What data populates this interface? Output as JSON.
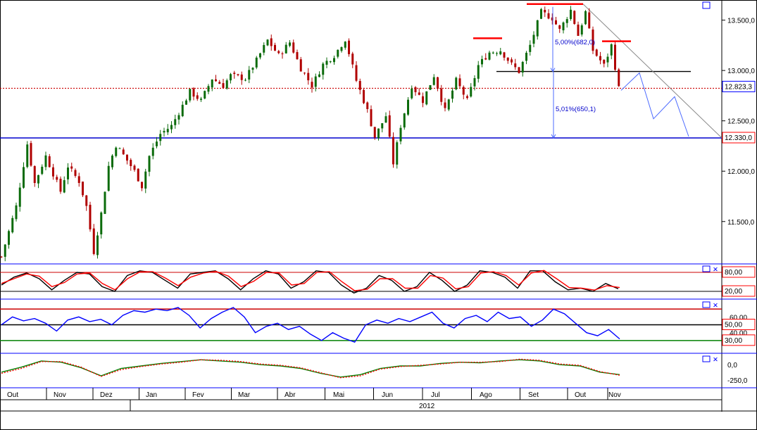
{
  "chart_data": [
    {
      "panel": "price",
      "type": "candlestick",
      "ylim": [
        11100,
        13700
      ],
      "yticks": [
        "13.500,0",
        "13.000,0",
        "12.500,0",
        "12.000,0",
        "11.500,0"
      ],
      "ytick_values": [
        13500,
        13000,
        12500,
        12000,
        11500
      ],
      "x": [
        "Out",
        "Nov",
        "Dez",
        "Jan",
        "Fev",
        "Mar",
        "Abr",
        "Mai",
        "Jun",
        "Jul",
        "Ago",
        "Set",
        "Out",
        "Nov"
      ],
      "close_series": [
        [
          0,
          11150
        ],
        [
          4,
          11650
        ],
        [
          7,
          12270
        ],
        [
          9,
          11880
        ],
        [
          12,
          12150
        ],
        [
          16,
          11800
        ],
        [
          18,
          12050
        ],
        [
          21,
          11900
        ],
        [
          23,
          11650
        ],
        [
          25,
          11200
        ],
        [
          27,
          11580
        ],
        [
          29,
          12050
        ],
        [
          31,
          12260
        ],
        [
          33,
          12160
        ],
        [
          36,
          12000
        ],
        [
          38,
          11850
        ],
        [
          40,
          12150
        ],
        [
          43,
          12370
        ],
        [
          46,
          12450
        ],
        [
          49,
          12650
        ],
        [
          51,
          12790
        ],
        [
          54,
          12700
        ],
        [
          57,
          12920
        ],
        [
          60,
          12850
        ],
        [
          62,
          12950
        ],
        [
          66,
          12920
        ],
        [
          69,
          13100
        ],
        [
          72,
          13300
        ],
        [
          75,
          13150
        ],
        [
          78,
          13280
        ],
        [
          81,
          13020
        ],
        [
          84,
          12850
        ],
        [
          87,
          13060
        ],
        [
          90,
          13150
        ],
        [
          93,
          13310
        ],
        [
          96,
          12900
        ],
        [
          99,
          12600
        ],
        [
          101,
          12340
        ],
        [
          104,
          12550
        ],
        [
          106,
          12080
        ],
        [
          108,
          12450
        ],
        [
          111,
          12850
        ],
        [
          114,
          12700
        ],
        [
          117,
          12950
        ],
        [
          120,
          12600
        ],
        [
          123,
          12900
        ],
        [
          126,
          12700
        ],
        [
          129,
          13050
        ],
        [
          132,
          13180
        ],
        [
          135,
          13200
        ],
        [
          138,
          13060
        ],
        [
          140,
          12990
        ],
        [
          143,
          13250
        ],
        [
          146,
          13580
        ],
        [
          149,
          13520
        ],
        [
          151,
          13400
        ],
        [
          154,
          13600
        ],
        [
          156,
          13350
        ],
        [
          158,
          13580
        ],
        [
          160,
          13200
        ],
        [
          163,
          13050
        ],
        [
          165,
          13250
        ],
        [
          167,
          12823
        ]
      ],
      "last_price": "12.823,3",
      "last_price_value": 12823.3,
      "support": "12.330,0",
      "support_value": 12330,
      "neckline_value": 12990,
      "annotations": [
        "5,00%(682,0)",
        "5,01%(650,1)"
      ],
      "resistance_marks_value": [
        13320,
        13660,
        13290
      ]
    },
    {
      "panel": "stochastic",
      "type": "line",
      "levels": [
        "80,00",
        "20,00"
      ],
      "level_values": [
        80,
        20
      ],
      "series": [
        {
          "color": "#000000",
          "values": [
            40,
            65,
            78,
            60,
            25,
            55,
            80,
            75,
            35,
            20,
            70,
            85,
            80,
            55,
            30,
            75,
            80,
            85,
            60,
            25,
            60,
            85,
            75,
            30,
            50,
            85,
            80,
            40,
            15,
            30,
            70,
            55,
            20,
            35,
            80,
            55,
            20,
            40,
            85,
            80,
            65,
            30,
            85,
            85,
            50,
            25,
            30,
            20,
            45,
            28
          ]
        },
        {
          "color": "#ff0000",
          "values": [
            45,
            60,
            75,
            68,
            35,
            48,
            75,
            78,
            45,
            25,
            60,
            82,
            82,
            62,
            38,
            65,
            78,
            83,
            68,
            35,
            52,
            80,
            78,
            40,
            45,
            80,
            82,
            50,
            22,
            27,
            60,
            60,
            30,
            30,
            70,
            62,
            28,
            35,
            78,
            82,
            70,
            40,
            78,
            86,
            60,
            32,
            30,
            24,
            38,
            32
          ]
        }
      ]
    },
    {
      "panel": "rsi",
      "type": "line",
      "yticks": [
        "60,00",
        "40,00"
      ],
      "ytick_values": [
        60,
        40
      ],
      "levels": [
        "50,00",
        "30,00"
      ],
      "level_values": [
        50,
        30
      ],
      "upper_level_value": 70,
      "series": [
        {
          "color": "#0000ff",
          "values": [
            50,
            60,
            55,
            58,
            52,
            42,
            56,
            60,
            54,
            57,
            50,
            62,
            68,
            66,
            70,
            68,
            72,
            62,
            46,
            58,
            66,
            72,
            60,
            40,
            48,
            52,
            44,
            48,
            38,
            30,
            40,
            33,
            28,
            50,
            56,
            52,
            58,
            54,
            60,
            66,
            52,
            46,
            58,
            62,
            54,
            66,
            58,
            60,
            48,
            56,
            70,
            64,
            52,
            40,
            36,
            44,
            32
          ]
        }
      ]
    },
    {
      "panel": "oscillator",
      "type": "line",
      "yticks": [
        "0,0",
        "-250,0"
      ],
      "ytick_values": [
        0,
        -250
      ],
      "series": [
        {
          "color": "#008000",
          "values": [
            -120,
            -40,
            60,
            40,
            -50,
            -180,
            -60,
            -20,
            20,
            50,
            80,
            60,
            40,
            0,
            -20,
            -60,
            -140,
            -200,
            -160,
            -60,
            -20,
            -20,
            20,
            40,
            30,
            60,
            80,
            60,
            0,
            -20,
            -120,
            -160
          ]
        },
        {
          "color": "#ff0000",
          "values": [
            -140,
            -60,
            50,
            50,
            -40,
            -190,
            -80,
            -30,
            10,
            40,
            80,
            70,
            50,
            10,
            -10,
            -50,
            -130,
            -210,
            -180,
            -70,
            -30,
            -10,
            10,
            40,
            40,
            50,
            90,
            70,
            10,
            -10,
            -110,
            -170
          ]
        }
      ]
    }
  ],
  "xaxis": {
    "months": [
      "Out",
      "Nov",
      "Dez",
      "Jan",
      "Fev",
      "Mar",
      "Abr",
      "Mai",
      "Jun",
      "Jul",
      "Ago",
      "Set",
      "Out",
      "Nov"
    ],
    "year": "2012"
  },
  "colors": {
    "up_candle": "#0b6b0b",
    "down_candle": "#b00000",
    "support_line": "#0000cd",
    "dotted_price": "#cc0000",
    "marker_red": "#ff0000",
    "projection": "#4d6bff",
    "trendline": "#888888"
  }
}
